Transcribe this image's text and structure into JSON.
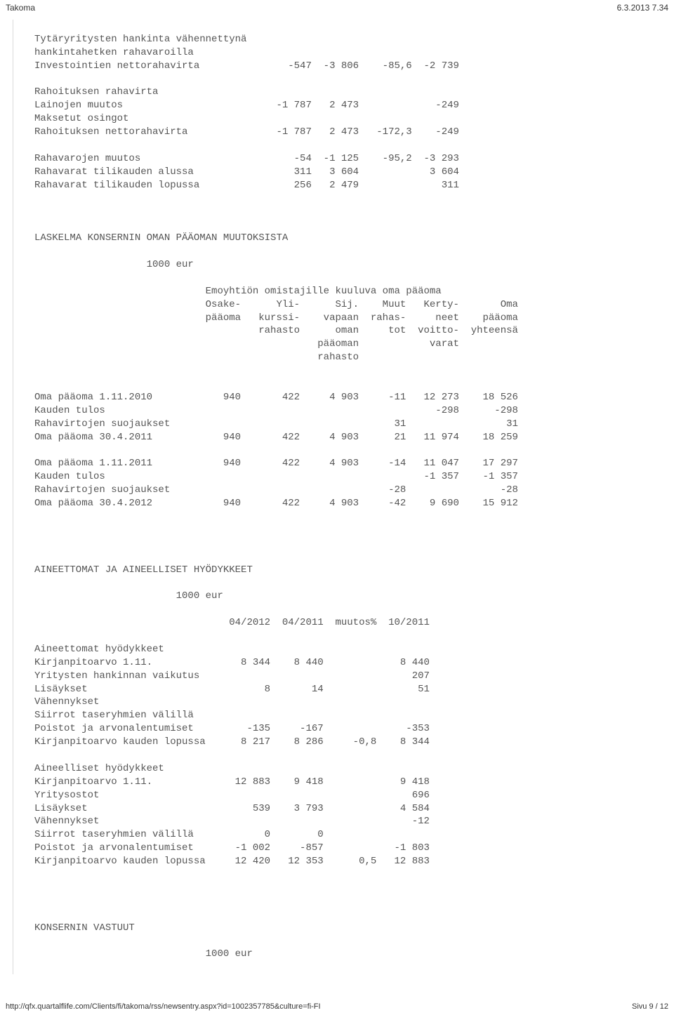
{
  "header": {
    "title": "Takoma",
    "datetime": "6.3.2013 7.34"
  },
  "footer": {
    "url": "http://qfx.quartalflife.com/Clients/fi/takoma/rss/newsentry.aspx?id=1002357785&culture=fi-FI",
    "page": "Sivu 9 / 12"
  },
  "cashflow": {
    "lines": [
      "Tytäryritysten hankinta vähennettynä",
      "hankintahetken rahavaroilla",
      "Investointien nettorahavirta               -547  -3 806    -85,6  -2 739",
      "",
      "Rahoituksen rahavirta",
      "Lainojen muutos                          -1 787   2 473             -249",
      "Maksetut osingot",
      "Rahoituksen nettorahavirta               -1 787   2 473   -172,3    -249",
      "",
      "Rahavarojen muutos                          -54  -1 125    -95,2  -3 293",
      "Rahavarat tilikauden alussa                 311   3 604            3 604",
      "Rahavarat tilikauden lopussa                256   2 479              311"
    ]
  },
  "equity": {
    "title": "LASKELMA KONSERNIN OMAN PÄÄOMAN MUUTOKSISTA",
    "unit": "                   1000 eur",
    "header_lines": [
      "                             Emoyhtiön omistajille kuuluva oma pääoma",
      "                             Osake-      Yli-      Sij.    Muut   Kerty-       Oma",
      "                             pääoma   kurssi-    vapaan  rahas-     neet    pääoma",
      "                                      rahasto      oman     tot  voitto-  yhteensä",
      "                                                pääoman            varat",
      "                                                rahasto"
    ],
    "rows": [
      "Oma pääoma 1.11.2010            940       422     4 903     -11   12 273    18 526",
      "Kauden tulos                                                        -298      -298",
      "Rahavirtojen suojaukset                                      31                 31",
      "Oma pääoma 30.4.2011            940       422     4 903      21   11 974    18 259",
      "",
      "Oma pääoma 1.11.2011            940       422     4 903     -14   11 047    17 297",
      "Kauden tulos                                                      -1 357    -1 357",
      "Rahavirtojen suojaukset                                     -28                -28",
      "Oma pääoma 30.4.2012            940       422     4 903     -42    9 690    15 912"
    ]
  },
  "assets": {
    "title": "AINEETTOMAT JA AINEELLISET HYÖDYKKEET",
    "unit": "                        1000 eur",
    "header": "                                 04/2012  04/2011  muutos%  10/2011",
    "rows": [
      "Aineettomat hyödykkeet",
      "Kirjanpitoarvo 1.11.               8 344    8 440             8 440",
      "Yritysten hankinnan vaikutus                                    207",
      "Lisäykset                              8       14                51",
      "Vähennykset",
      "Siirrot taseryhmien välillä",
      "Poistot ja arvonalentumiset         -135     -167              -353",
      "Kirjanpitoarvo kauden lopussa      8 217    8 286     -0,8    8 344",
      "",
      "Aineelliset hyödykkeet",
      "Kirjanpitoarvo 1.11.              12 883    9 418             9 418",
      "Yritysostot                                                     696",
      "Lisäykset                            539    3 793             4 584",
      "Vähennykset                                                     -12",
      "Siirrot taseryhmien välillä            0        0",
      "Poistot ja arvonalentumiset       -1 002     -857            -1 803",
      "Kirjanpitoarvo kauden lopussa     12 420   12 353      0,5   12 883"
    ]
  },
  "liabilities": {
    "title": "KONSERNIN VASTUUT",
    "unit": "                             1000 eur"
  }
}
